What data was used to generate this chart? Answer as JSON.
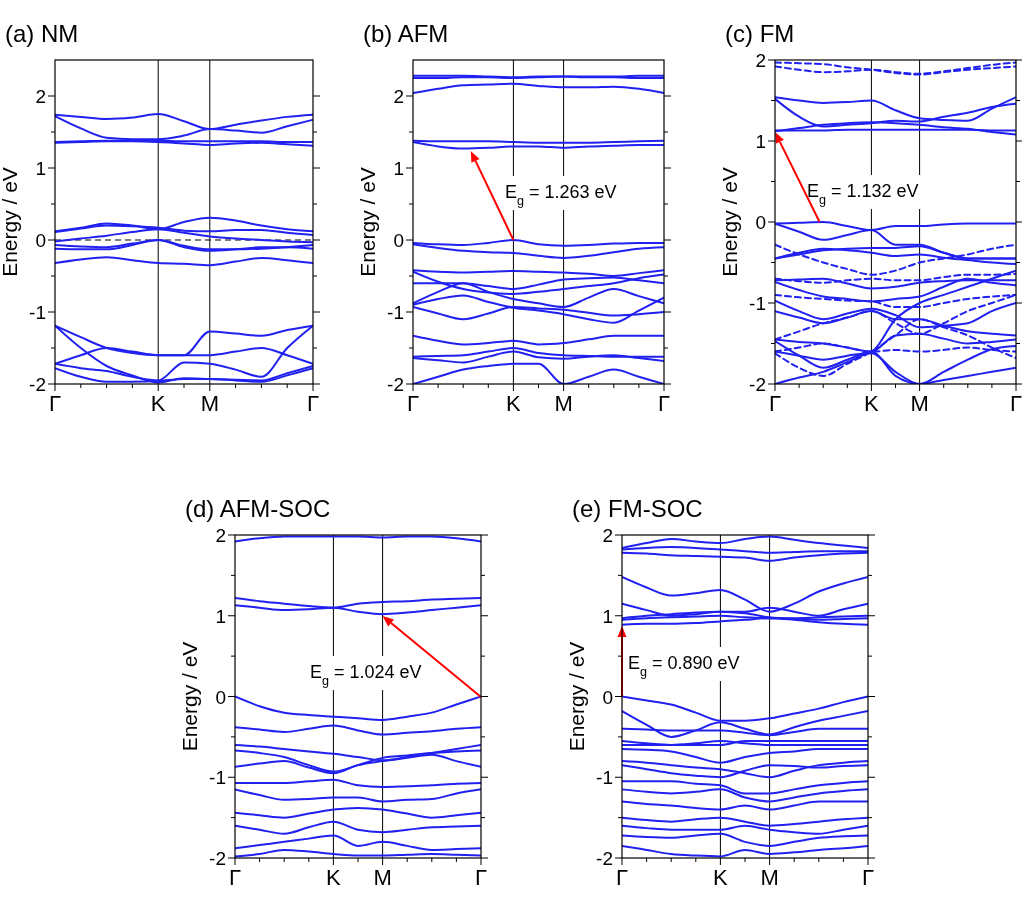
{
  "chart_data": [
    {
      "type": "line",
      "title": "(a) NM",
      "ylabel": "Energy / eV",
      "categories": [
        "Γ",
        null,
        null,
        null,
        "K",
        null,
        "M",
        null,
        null,
        null,
        "Γ"
      ],
      "ylim": [
        -2,
        2.5
      ],
      "yticks": [
        -2,
        {
          "value": -1.5,
          "label": null
        },
        -1,
        {
          "value": -0.5,
          "label": null
        },
        0,
        {
          "value": 0.5,
          "label": null
        },
        1,
        {
          "value": 1.5,
          "label": null
        },
        2
      ],
      "ref_lines": [
        {
          "axis": "x",
          "value": "K",
          "color": "#000000"
        },
        {
          "axis": "x",
          "value": "M",
          "color": "#000000"
        },
        {
          "axis": "y",
          "value": 0,
          "color": "#000000",
          "line_style": "dashed"
        }
      ],
      "series": [
        {
          "color": "#2020f0",
          "values": [
            1.74,
            1.71,
            1.68,
            1.7,
            1.75,
            1.65,
            1.54,
            1.6,
            1.66,
            1.71,
            1.74
          ]
        },
        {
          "color": "#2020f0",
          "values": [
            1.72,
            1.55,
            1.42,
            1.4,
            1.4,
            1.45,
            1.54,
            1.52,
            1.49,
            1.58,
            1.67
          ]
        },
        {
          "color": "#2020f0",
          "values": [
            1.36,
            1.37,
            1.38,
            1.38,
            1.38,
            1.37,
            1.37,
            1.37,
            1.37,
            1.36,
            1.36
          ]
        },
        {
          "color": "#2020f0",
          "values": [
            1.35,
            1.36,
            1.37,
            1.37,
            1.36,
            1.34,
            1.32,
            1.34,
            1.35,
            1.33,
            1.31
          ]
        },
        {
          "color": "#2020f0",
          "values": [
            0.12,
            0.17,
            0.23,
            0.2,
            0.15,
            0.25,
            0.31,
            0.27,
            0.2,
            0.15,
            0.12
          ]
        },
        {
          "color": "#2020f0",
          "values": [
            0.11,
            0.16,
            0.2,
            0.19,
            0.17,
            0.13,
            0.12,
            0.14,
            0.14,
            0.1,
            0.07
          ]
        },
        {
          "color": "#2020f0",
          "values": [
            -0.02,
            0.02,
            0.06,
            0.11,
            0.15,
            0.1,
            0.05,
            0.02,
            0,
            -0.02,
            -0.03
          ]
        },
        {
          "color": "#2020f0",
          "values": [
            -0.07,
            -0.09,
            -0.1,
            -0.05,
            0,
            -0.08,
            -0.13,
            -0.13,
            -0.12,
            -0.1,
            -0.07
          ]
        },
        {
          "color": "#2020f0",
          "values": [
            -0.12,
            -0.13,
            -0.13,
            -0.07,
            0,
            -0.1,
            -0.15,
            -0.13,
            -0.1,
            -0.1,
            -0.12
          ]
        },
        {
          "color": "#2020f0",
          "values": [
            -0.32,
            -0.27,
            -0.24,
            -0.28,
            -0.32,
            -0.33,
            -0.35,
            -0.3,
            -0.25,
            -0.28,
            -0.32
          ]
        },
        {
          "color": "#2020f0",
          "values": [
            -1.19,
            -1.35,
            -1.5,
            -1.57,
            -1.6,
            -1.6,
            -1.27,
            -1.3,
            -1.33,
            -1.25,
            -1.19
          ]
        },
        {
          "color": "#2020f0",
          "values": [
            -1.19,
            -1.5,
            -1.75,
            -1.88,
            -1.98,
            -1.92,
            -1.93,
            -1.94,
            -1.95,
            -1.85,
            -1.75
          ]
        },
        {
          "color": "#2020f0",
          "values": [
            -1.72,
            -1.6,
            -1.5,
            -1.55,
            -1.6,
            -1.6,
            -1.6,
            -1.55,
            -1.5,
            -1.6,
            -1.72
          ]
        },
        {
          "color": "#2020f0",
          "values": [
            -1.72,
            -1.78,
            -1.82,
            -1.9,
            -1.95,
            -1.7,
            -1.72,
            -1.8,
            -1.9,
            -1.5,
            -1.19
          ]
        },
        {
          "color": "#2020f0",
          "values": [
            -1.78,
            -1.9,
            -1.97,
            -1.97,
            -1.96,
            -1.93,
            -1.93,
            -1.95,
            -1.97,
            -1.88,
            -1.78
          ]
        }
      ]
    },
    {
      "type": "line",
      "title": "(b) AFM",
      "ylabel": "Energy / eV",
      "categories": [
        "Γ",
        null,
        null,
        null,
        "K",
        null,
        "M",
        null,
        null,
        null,
        "Γ"
      ],
      "ylim": [
        -2,
        2.5
      ],
      "yticks": [
        -2,
        {
          "value": -1.5,
          "label": null
        },
        -1,
        {
          "value": -0.5,
          "label": null
        },
        0,
        {
          "value": 0.5,
          "label": null
        },
        1,
        {
          "value": 1.5,
          "label": null
        },
        2
      ],
      "ref_lines": [
        {
          "axis": "x",
          "value": "K",
          "color": "#000000"
        },
        {
          "axis": "x",
          "value": "M",
          "color": "#000000"
        }
      ],
      "annotations": [
        "E$_{g}$ = 1.263 eV"
      ],
      "series": [
        {
          "color": "#2020f0",
          "values": [
            2.28,
            2.28,
            2.28,
            2.27,
            2.26,
            2.27,
            2.27,
            2.27,
            2.27,
            2.28,
            2.28
          ]
        },
        {
          "color": "#2020f0",
          "values": [
            2.25,
            2.25,
            2.26,
            2.26,
            2.25,
            2.26,
            2.27,
            2.26,
            2.26,
            2.25,
            2.25
          ]
        },
        {
          "color": "#2020f0",
          "values": [
            2.04,
            2.1,
            2.15,
            2.16,
            2.17,
            2.14,
            2.12,
            2.12,
            2.13,
            2.1,
            2.04
          ]
        },
        {
          "color": "#2020f0",
          "values": [
            1.38,
            1.37,
            1.37,
            1.37,
            1.36,
            1.35,
            1.35,
            1.35,
            1.36,
            1.37,
            1.38
          ]
        },
        {
          "color": "#2020f0",
          "values": [
            1.36,
            1.3,
            1.27,
            1.28,
            1.3,
            1.3,
            1.28,
            1.3,
            1.31,
            1.32,
            1.32
          ]
        },
        {
          "color": "#2020f0",
          "values": [
            -0.04,
            -0.06,
            -0.07,
            -0.04,
            0,
            -0.06,
            -0.08,
            -0.07,
            -0.05,
            -0.04,
            -0.04
          ]
        },
        {
          "color": "#2020f0",
          "values": [
            -0.06,
            -0.11,
            -0.15,
            -0.17,
            -0.18,
            -0.22,
            -0.25,
            -0.22,
            -0.17,
            -0.12,
            -0.1
          ]
        },
        {
          "color": "#2020f0",
          "values": [
            -0.42,
            -0.44,
            -0.45,
            -0.44,
            -0.43,
            -0.44,
            -0.45,
            -0.47,
            -0.5,
            -0.46,
            -0.42
          ]
        },
        {
          "color": "#2020f0",
          "values": [
            -0.44,
            -0.58,
            -0.68,
            -0.73,
            -0.75,
            -0.72,
            -0.68,
            -0.64,
            -0.6,
            -0.53,
            -0.48
          ]
        },
        {
          "color": "#2020f0",
          "values": [
            -0.6,
            -0.6,
            -0.6,
            -0.64,
            -0.68,
            -0.62,
            -0.55,
            -0.53,
            -0.52,
            -0.56,
            -0.6
          ]
        },
        {
          "color": "#2020f0",
          "values": [
            -0.88,
            -0.72,
            -0.6,
            -0.72,
            -0.82,
            -0.88,
            -0.93,
            -0.8,
            -0.68,
            -0.78,
            -0.88
          ]
        },
        {
          "color": "#2020f0",
          "values": [
            -0.93,
            -1.02,
            -1.1,
            -1.02,
            -0.93,
            -0.95,
            -0.97,
            -1.01,
            -1.05,
            -1.03,
            -1
          ]
        },
        {
          "color": "#2020f0",
          "values": [
            -0.9,
            -0.82,
            -0.77,
            -0.86,
            -0.94,
            -0.98,
            -1.03,
            -1.1,
            -1.15,
            -0.98,
            -0.8
          ]
        },
        {
          "color": "#2020f0",
          "values": [
            -1.33,
            -1.4,
            -1.45,
            -1.43,
            -1.4,
            -1.45,
            -1.43,
            -1.38,
            -1.33,
            -1.33,
            -1.33
          ]
        },
        {
          "color": "#2020f0",
          "values": [
            -1.62,
            -1.61,
            -1.6,
            -1.55,
            -1.5,
            -1.57,
            -1.6,
            -1.61,
            -1.62,
            -1.62,
            -1.62
          ]
        },
        {
          "color": "#2020f0",
          "values": [
            -1.64,
            -1.67,
            -1.7,
            -1.62,
            -1.55,
            -1.63,
            -1.65,
            -1.62,
            -1.6,
            -1.64,
            -1.68
          ]
        },
        {
          "color": "#2020f0",
          "values": [
            -2,
            -1.9,
            -1.8,
            -1.75,
            -1.72,
            -1.72,
            -2,
            -1.9,
            -1.8,
            -1.9,
            -2
          ]
        }
      ]
    },
    {
      "type": "line",
      "title": "(c) FM",
      "ylabel": "Energy / eV",
      "categories": [
        "Γ",
        null,
        null,
        null,
        "K",
        null,
        "M",
        null,
        null,
        null,
        "Γ"
      ],
      "ylim": [
        -2,
        2
      ],
      "yticks": [
        -2,
        {
          "value": -1.5,
          "label": null
        },
        -1,
        {
          "value": -0.5,
          "label": null
        },
        0,
        {
          "value": 0.5,
          "label": null
        },
        1,
        {
          "value": 1.5,
          "label": null
        },
        2
      ],
      "ref_lines": [
        {
          "axis": "x",
          "value": "K",
          "color": "#000000"
        },
        {
          "axis": "x",
          "value": "M",
          "color": "#000000"
        }
      ],
      "annotations": [
        "E$_{g}$ = 1.132 eV"
      ],
      "series": [
        {
          "color": "#2020f0",
          "line_style": "dashed",
          "values": [
            1.92,
            1.88,
            1.85,
            1.86,
            1.88,
            1.85,
            1.83,
            1.86,
            1.9,
            1.94,
            1.97
          ]
        },
        {
          "color": "#2020f0",
          "line_style": "dashed",
          "values": [
            1.97,
            1.96,
            1.95,
            1.91,
            1.88,
            1.84,
            1.82,
            1.85,
            1.88,
            1.9,
            1.92
          ]
        },
        {
          "color": "#2020f0",
          "values": [
            1.54,
            1.5,
            1.47,
            1.48,
            1.5,
            1.38,
            1.28,
            1.26,
            1.25,
            1.4,
            1.54
          ]
        },
        {
          "color": "#2020f0",
          "values": [
            1.52,
            1.3,
            1.18,
            1.2,
            1.22,
            1.25,
            1.24,
            1.3,
            1.35,
            1.42,
            1.46
          ]
        },
        {
          "color": "#2020f0",
          "values": [
            1.12,
            1.16,
            1.2,
            1.22,
            1.23,
            1.22,
            1.2,
            1.17,
            1.15,
            1.11,
            1.08
          ]
        },
        {
          "color": "#2020f0",
          "values": [
            1.13,
            1.13,
            1.13,
            1.14,
            1.14,
            1.14,
            1.14,
            1.14,
            1.14,
            1.13,
            1.13
          ]
        },
        {
          "color": "#2020f0",
          "values": [
            -0.02,
            -0.01,
            0,
            -0.05,
            -0.1,
            -0.05,
            -0.05,
            -0.03,
            -0.02,
            -0.02,
            -0.02
          ]
        },
        {
          "color": "#2020f0",
          "values": [
            -0.02,
            -0.12,
            -0.22,
            -0.16,
            -0.1,
            -0.28,
            -0.28,
            -0.38,
            -0.45,
            -0.45,
            -0.45
          ]
        },
        {
          "color": "#2020f0",
          "values": [
            -0.45,
            -0.4,
            -0.35,
            -0.33,
            -0.32,
            -0.32,
            -0.3,
            -0.38,
            -0.45,
            -0.45,
            -0.45
          ]
        },
        {
          "color": "#2020f0",
          "values": [
            -0.45,
            -0.38,
            -0.33,
            -0.35,
            -0.38,
            -0.42,
            -0.4,
            -0.44,
            -0.47,
            -0.5,
            -0.52
          ]
        },
        {
          "color": "#2020f0",
          "values": [
            -0.72,
            -0.71,
            -0.7,
            -0.76,
            -0.82,
            -0.8,
            -0.75,
            -0.73,
            -0.72,
            -0.72,
            -0.72
          ]
        },
        {
          "color": "#2020f0",
          "values": [
            -0.74,
            -0.84,
            -0.92,
            -0.95,
            -0.98,
            -0.95,
            -0.92,
            -0.8,
            -0.7,
            -0.75,
            -0.78
          ]
        },
        {
          "color": "#2020f0",
          "values": [
            -0.97,
            -1.1,
            -1.2,
            -1.13,
            -1.07,
            -1.15,
            -1.3,
            -1.28,
            -1.25,
            -1.1,
            -1
          ]
        },
        {
          "color": "#2020f0",
          "values": [
            -1.1,
            -1.18,
            -1.25,
            -1.18,
            -1.1,
            -1.2,
            -1.2,
            -1.28,
            -1.35,
            -1.38,
            -1.4
          ]
        },
        {
          "color": "#2020f0",
          "values": [
            -1.45,
            -1.48,
            -1.5,
            -1.55,
            -1.6,
            -1.4,
            -1.38,
            -1.44,
            -1.5,
            -1.48,
            -1.45
          ]
        },
        {
          "color": "#2020f0",
          "values": [
            -1.47,
            -1.65,
            -1.8,
            -1.7,
            -1.6,
            -1.9,
            -2,
            -1.85,
            -1.7,
            -1.57,
            -1.53
          ]
        },
        {
          "color": "#2020f0",
          "values": [
            -1.6,
            -1.65,
            -1.7,
            -1.65,
            -1.6,
            -1.2,
            -1,
            -0.9,
            -0.8,
            -0.7,
            -0.6
          ]
        },
        {
          "color": "#2020f0",
          "values": [
            -2,
            -1.92,
            -1.85,
            -1.73,
            -1.62,
            -1.85,
            -2,
            -1.95,
            -1.9,
            -1.85,
            -1.8
          ]
        },
        {
          "color": "#2020f0",
          "line_style": "dashed",
          "values": [
            -0.28,
            -0.4,
            -0.5,
            -0.58,
            -0.65,
            -0.6,
            -0.5,
            -0.45,
            -0.4,
            -0.33,
            -0.28
          ]
        },
        {
          "color": "#2020f0",
          "line_style": "dashed",
          "values": [
            -0.7,
            -0.73,
            -0.75,
            -0.72,
            -0.7,
            -0.72,
            -0.72,
            -0.68,
            -0.65,
            -0.65,
            -0.64
          ]
        },
        {
          "color": "#2020f0",
          "line_style": "dashed",
          "values": [
            -0.9,
            -0.93,
            -0.95,
            -0.97,
            -0.98,
            -1.05,
            -1.05,
            -1,
            -0.95,
            -0.92,
            -0.9
          ]
        },
        {
          "color": "#2020f0",
          "line_style": "dashed",
          "values": [
            -1.45,
            -1.35,
            -1.25,
            -1.18,
            -1.1,
            -1.25,
            -1.38,
            -1.25,
            -1.1,
            -1,
            -0.9
          ]
        },
        {
          "color": "#2020f0",
          "line_style": "dashed",
          "values": [
            -1.6,
            -1.55,
            -1.5,
            -1.55,
            -1.6,
            -1.58,
            -1.6,
            -1.58,
            -1.55,
            -1.58,
            -1.6
          ]
        },
        {
          "color": "#2020f0",
          "line_style": "dashed",
          "values": [
            -1.62,
            -1.8,
            -1.9,
            -1.75,
            -1.6,
            -1.4,
            -1.2,
            -1.3,
            -1.4,
            -1.55,
            -1.68
          ]
        }
      ]
    },
    {
      "type": "line",
      "title": "(d) AFM-SOC",
      "ylabel": "Energy / eV",
      "categories": [
        "Γ",
        null,
        null,
        null,
        "K",
        null,
        "M",
        null,
        null,
        null,
        "Γ"
      ],
      "ylim": [
        -2,
        2
      ],
      "yticks": [
        -2,
        {
          "value": -1.5,
          "label": null
        },
        -1,
        {
          "value": -0.5,
          "label": null
        },
        0,
        {
          "value": 0.5,
          "label": null
        },
        1,
        {
          "value": 1.5,
          "label": null
        },
        2
      ],
      "ref_lines": [
        {
          "axis": "x",
          "value": "K",
          "color": "#000000"
        },
        {
          "axis": "x",
          "value": "M",
          "color": "#000000"
        }
      ],
      "annotations": [
        "E$_{g}$ = 1.024 eV"
      ],
      "series": [
        {
          "color": "#2020f0",
          "values": [
            1.92,
            1.96,
            1.98,
            1.98,
            1.98,
            1.98,
            1.97,
            1.98,
            1.98,
            1.96,
            1.92
          ]
        },
        {
          "color": "#2020f0",
          "values": [
            1.22,
            1.18,
            1.15,
            1.12,
            1.1,
            1.15,
            1.17,
            1.18,
            1.2,
            1.21,
            1.22
          ]
        },
        {
          "color": "#2020f0",
          "values": [
            1.13,
            1.1,
            1.07,
            1.08,
            1.1,
            1.05,
            1.02,
            1.04,
            1.07,
            1.1,
            1.13
          ]
        },
        {
          "color": "#2020f0",
          "values": [
            0,
            -0.12,
            -0.2,
            -0.23,
            -0.25,
            -0.27,
            -0.29,
            -0.25,
            -0.2,
            -0.1,
            0
          ]
        },
        {
          "color": "#2020f0",
          "values": [
            -0.38,
            -0.41,
            -0.44,
            -0.4,
            -0.36,
            -0.42,
            -0.47,
            -0.45,
            -0.43,
            -0.4,
            -0.38
          ]
        },
        {
          "color": "#2020f0",
          "values": [
            -0.6,
            -0.62,
            -0.65,
            -0.68,
            -0.71,
            -0.75,
            -0.79,
            -0.75,
            -0.7,
            -0.65,
            -0.6
          ]
        },
        {
          "color": "#2020f0",
          "values": [
            -0.67,
            -0.7,
            -0.75,
            -0.85,
            -0.93,
            -0.85,
            -0.76,
            -0.73,
            -0.7,
            -0.68,
            -0.67
          ]
        },
        {
          "color": "#2020f0",
          "values": [
            -0.87,
            -0.83,
            -0.8,
            -0.88,
            -0.95,
            -0.85,
            -0.8,
            -0.76,
            -0.72,
            -0.8,
            -0.87
          ]
        },
        {
          "color": "#2020f0",
          "values": [
            -1.07,
            -1.07,
            -1.07,
            -1.05,
            -1.03,
            -1.1,
            -1.12,
            -1.11,
            -1.1,
            -1.08,
            -1.07
          ]
        },
        {
          "color": "#2020f0",
          "values": [
            -1.15,
            -1.22,
            -1.28,
            -1.27,
            -1.25,
            -1.25,
            -1.3,
            -1.28,
            -1.27,
            -1.2,
            -1.15
          ]
        },
        {
          "color": "#2020f0",
          "values": [
            -1.44,
            -1.47,
            -1.5,
            -1.45,
            -1.4,
            -1.38,
            -1.4,
            -1.45,
            -1.5,
            -1.47,
            -1.44
          ]
        },
        {
          "color": "#2020f0",
          "values": [
            -1.6,
            -1.65,
            -1.7,
            -1.62,
            -1.55,
            -1.65,
            -1.68,
            -1.65,
            -1.62,
            -1.61,
            -1.6
          ]
        },
        {
          "color": "#2020f0",
          "values": [
            -1.88,
            -1.84,
            -1.8,
            -1.76,
            -1.72,
            -1.85,
            -1.8,
            -1.85,
            -1.9,
            -1.89,
            -1.88
          ]
        },
        {
          "color": "#2020f0",
          "values": [
            -1.98,
            -1.95,
            -1.9,
            -1.92,
            -1.95,
            -1.97,
            -1.97,
            -1.96,
            -1.95,
            -1.96,
            -1.97
          ]
        }
      ]
    },
    {
      "type": "line",
      "title": "(e) FM-SOC",
      "ylabel": "Energy / eV",
      "categories": [
        "Γ",
        null,
        null,
        null,
        "K",
        null,
        "M",
        null,
        null,
        null,
        "Γ"
      ],
      "ylim": [
        -2,
        2
      ],
      "yticks": [
        -2,
        {
          "value": -1.5,
          "label": null
        },
        -1,
        {
          "value": -0.5,
          "label": null
        },
        0,
        {
          "value": 0.5,
          "label": null
        },
        1,
        {
          "value": 1.5,
          "label": null
        },
        2
      ],
      "ref_lines": [
        {
          "axis": "x",
          "value": "K",
          "color": "#000000"
        },
        {
          "axis": "x",
          "value": "M",
          "color": "#000000"
        }
      ],
      "annotations": [
        "E$_{g}$ = 0.890 eV"
      ],
      "series": [
        {
          "color": "#2020f0",
          "values": [
            1.84,
            1.9,
            1.95,
            1.92,
            1.9,
            1.95,
            1.98,
            1.94,
            1.9,
            1.87,
            1.84
          ]
        },
        {
          "color": "#2020f0",
          "values": [
            1.82,
            1.84,
            1.85,
            1.84,
            1.82,
            1.8,
            1.78,
            1.79,
            1.8,
            1.8,
            1.8
          ]
        },
        {
          "color": "#2020f0",
          "values": [
            1.78,
            1.77,
            1.75,
            1.74,
            1.73,
            1.72,
            1.68,
            1.72,
            1.75,
            1.77,
            1.78
          ]
        },
        {
          "color": "#2020f0",
          "values": [
            1.48,
            1.35,
            1.25,
            1.28,
            1.32,
            1.2,
            1.05,
            1.15,
            1.3,
            1.4,
            1.48
          ]
        },
        {
          "color": "#2020f0",
          "values": [
            1.15,
            1.07,
            1,
            1.02,
            1.05,
            1.05,
            1.1,
            1.05,
            1,
            1.08,
            1.15
          ]
        },
        {
          "color": "#2020f0",
          "values": [
            0.97,
            1,
            1.02,
            1.04,
            1.05,
            1.03,
            0.98,
            0.96,
            0.95,
            0.96,
            0.97
          ]
        },
        {
          "color": "#2020f0",
          "values": [
            0.95,
            0.97,
            0.98,
            0.99,
            1,
            0.98,
            0.97,
            0.97,
            0.98,
            0.99,
            1
          ]
        },
        {
          "color": "#2020f0",
          "values": [
            0.89,
            0.9,
            0.9,
            0.91,
            0.93,
            0.95,
            0.97,
            0.95,
            0.92,
            0.9,
            0.89
          ]
        },
        {
          "color": "#2020f0",
          "values": [
            0,
            -0.05,
            -0.1,
            -0.2,
            -0.3,
            -0.3,
            -0.27,
            -0.21,
            -0.15,
            -0.07,
            0
          ]
        },
        {
          "color": "#2020f0",
          "values": [
            -0.18,
            -0.35,
            -0.5,
            -0.42,
            -0.32,
            -0.4,
            -0.47,
            -0.38,
            -0.3,
            -0.24,
            -0.18
          ]
        },
        {
          "color": "#2020f0",
          "values": [
            -0.4,
            -0.41,
            -0.42,
            -0.42,
            -0.42,
            -0.45,
            -0.48,
            -0.44,
            -0.4,
            -0.4,
            -0.4
          ]
        },
        {
          "color": "#2020f0",
          "values": [
            -0.55,
            -0.58,
            -0.6,
            -0.6,
            -0.6,
            -0.55,
            -0.55,
            -0.55,
            -0.55,
            -0.55,
            -0.55
          ]
        },
        {
          "color": "#2020f0",
          "values": [
            -0.6,
            -0.6,
            -0.6,
            -0.58,
            -0.55,
            -0.58,
            -0.6,
            -0.6,
            -0.6,
            -0.6,
            -0.6
          ]
        },
        {
          "color": "#2020f0",
          "values": [
            -0.65,
            -0.66,
            -0.68,
            -0.75,
            -0.82,
            -0.75,
            -0.7,
            -0.68,
            -0.65,
            -0.65,
            -0.65
          ]
        },
        {
          "color": "#2020f0",
          "values": [
            -0.8,
            -0.82,
            -0.85,
            -0.88,
            -0.9,
            -0.95,
            -1,
            -0.92,
            -0.85,
            -0.82,
            -0.8
          ]
        },
        {
          "color": "#2020f0",
          "values": [
            -0.85,
            -0.9,
            -0.95,
            -0.98,
            -1,
            -0.92,
            -0.85,
            -0.86,
            -0.88,
            -0.86,
            -0.85
          ]
        },
        {
          "color": "#2020f0",
          "values": [
            -1.05,
            -1.05,
            -1.05,
            -1.08,
            -1.1,
            -1.2,
            -1.2,
            -1.15,
            -1.1,
            -1.07,
            -1.05
          ]
        },
        {
          "color": "#2020f0",
          "values": [
            -1.15,
            -1.18,
            -1.2,
            -1.18,
            -1.15,
            -1.25,
            -1.3,
            -1.25,
            -1.2,
            -1.17,
            -1.15
          ]
        },
        {
          "color": "#2020f0",
          "values": [
            -1.3,
            -1.33,
            -1.35,
            -1.38,
            -1.4,
            -1.35,
            -1.4,
            -1.35,
            -1.3,
            -1.3,
            -1.3
          ]
        },
        {
          "color": "#2020f0",
          "values": [
            -1.5,
            -1.53,
            -1.55,
            -1.52,
            -1.5,
            -1.55,
            -1.6,
            -1.58,
            -1.55,
            -1.52,
            -1.5
          ]
        },
        {
          "color": "#2020f0",
          "values": [
            -1.6,
            -1.63,
            -1.65,
            -1.65,
            -1.65,
            -1.6,
            -1.65,
            -1.68,
            -1.7,
            -1.65,
            -1.6
          ]
        },
        {
          "color": "#2020f0",
          "values": [
            -1.72,
            -1.74,
            -1.75,
            -1.72,
            -1.7,
            -1.8,
            -1.85,
            -1.8,
            -1.75,
            -1.73,
            -1.72
          ]
        },
        {
          "color": "#2020f0",
          "values": [
            -1.85,
            -1.9,
            -1.95,
            -1.97,
            -1.98,
            -1.9,
            -1.95,
            -1.93,
            -1.9,
            -1.88,
            -1.85
          ]
        }
      ]
    }
  ]
}
